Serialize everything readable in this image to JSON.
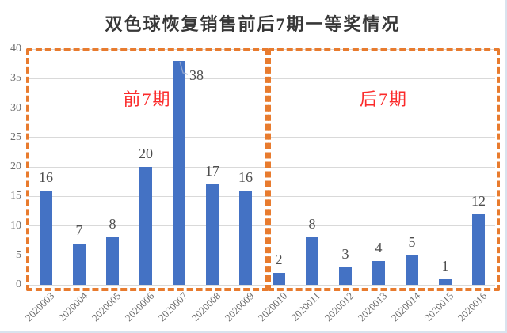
{
  "page": {
    "title": "双色球恢复销售前后7期一等奖情况",
    "background": "#ffffff",
    "edge_border_color": "#d9e3ee"
  },
  "chart_data": {
    "type": "bar",
    "title": "双色球恢复销售前后7期一等奖情况",
    "categories": [
      "2020003",
      "2020004",
      "2020005",
      "2020006",
      "2020007",
      "2020008",
      "2020009",
      "2020010",
      "2020011",
      "2020012",
      "2020013",
      "2020014",
      "2020015",
      "2020016"
    ],
    "values": [
      16,
      7,
      8,
      20,
      38,
      17,
      16,
      2,
      8,
      3,
      4,
      5,
      1,
      12
    ],
    "xlabel": "",
    "ylabel": "",
    "ylim": [
      0,
      40
    ],
    "yticks": [
      0,
      5,
      10,
      15,
      20,
      25,
      30,
      35,
      40
    ],
    "grid": true,
    "legend": "none",
    "bar_color": "#4472c4",
    "gridline_color": "#d9d9d9",
    "axis_text_color": "#6e6e6e",
    "value_label_color": "#4d4d4d",
    "title_color": "#383838",
    "leader_line_color": "#8ea3ce",
    "annotations": [
      {
        "label": "前7期",
        "span": [
          "2020003",
          "2020009"
        ],
        "text_color": "#fb2b2b",
        "box_color": "#e87b2e",
        "box_style": "dashed"
      },
      {
        "label": "后7期",
        "span": [
          "2020010",
          "2020016"
        ],
        "text_color": "#fb2b2b",
        "box_color": "#e87b2e",
        "box_style": "dashed"
      }
    ],
    "moved_value_label": {
      "category": "2020007",
      "value": 38
    }
  }
}
